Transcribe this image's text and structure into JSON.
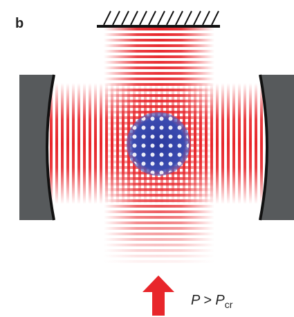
{
  "panel_label": "b",
  "pump_label": {
    "main": "P > P",
    "subscript": "cr"
  }
}
